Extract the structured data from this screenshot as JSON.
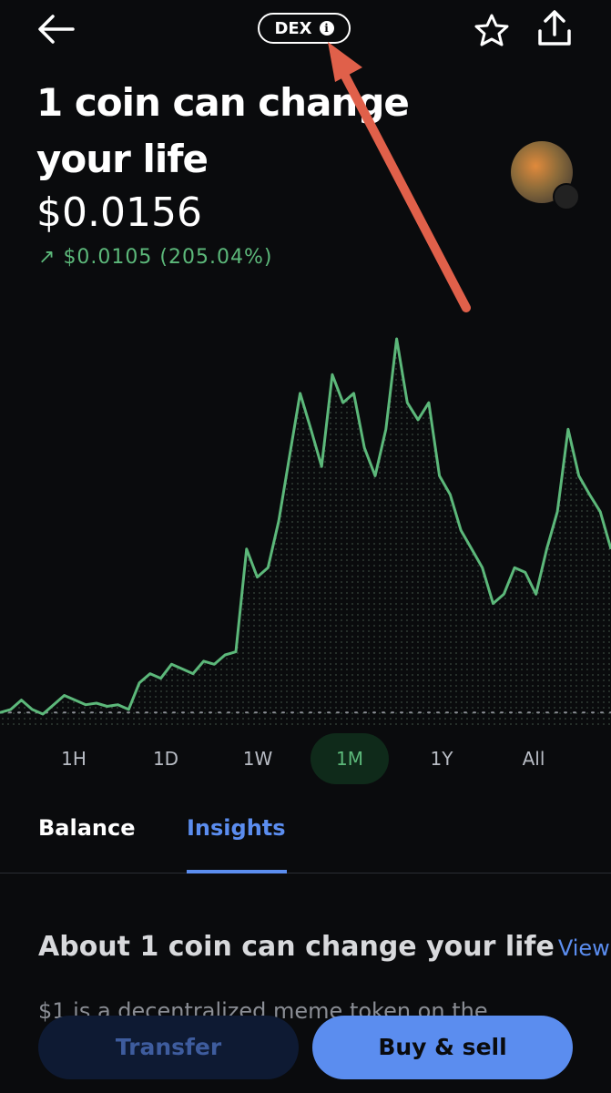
{
  "header": {
    "badge": "DEX"
  },
  "coin": {
    "name": "1 coin can change your life",
    "price": "$0.0156",
    "change": "$0.0105 (205.04%)"
  },
  "chart_data": {
    "type": "line",
    "color": "#5cb87a",
    "values": [
      0.0051,
      0.0053,
      0.0059,
      0.0053,
      0.005,
      0.0056,
      0.0062,
      0.0059,
      0.0056,
      0.0057,
      0.0055,
      0.0056,
      0.0053,
      0.007,
      0.0076,
      0.0073,
      0.0082,
      0.0079,
      0.0076,
      0.0084,
      0.0082,
      0.0088,
      0.009,
      0.0156,
      0.0138,
      0.0144,
      0.0174,
      0.0215,
      0.0256,
      0.0233,
      0.0209,
      0.0268,
      0.025,
      0.0256,
      0.0221,
      0.0203,
      0.0233,
      0.0291,
      0.025,
      0.0239,
      0.025,
      0.0203,
      0.0191,
      0.0168,
      0.0156,
      0.0144,
      0.0121,
      0.0127,
      0.0144,
      0.0141,
      0.0127,
      0.0156,
      0.018,
      0.0233,
      0.0203,
      0.0191,
      0.018,
      0.0156
    ]
  },
  "ranges": {
    "items": [
      "1H",
      "1D",
      "1W",
      "1M",
      "1Y",
      "All"
    ],
    "active": 3
  },
  "tabs": {
    "items": [
      "Balance",
      "Insights"
    ],
    "active": 1
  },
  "about": {
    "heading": "About 1 coin can change your life",
    "link": "View more",
    "text": "$1 is a decentralized meme token on the"
  },
  "actions": {
    "transfer": "Transfer",
    "buy_sell": "Buy & sell"
  }
}
